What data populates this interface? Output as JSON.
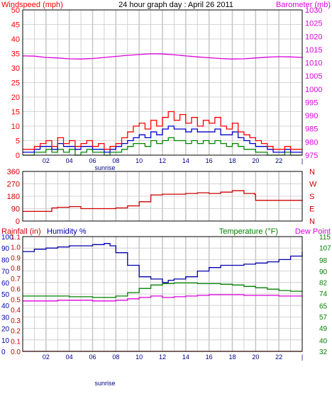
{
  "colors": {
    "wind_speed": "#ff0000",
    "wind_gust": "#0000cc",
    "wind_low": "#008800",
    "barometer": "#dd00dd",
    "direction": "#cc0000",
    "humidity": "#0000aa",
    "temperature": "#008000",
    "dew_point": "#dd00dd",
    "rainfall": "#cc0000",
    "grid": "#c8c8c8",
    "frame": "#000000"
  },
  "chart_data": [
    {
      "id": "wind-baro",
      "type": "line",
      "title": "24 hour graph day : April 26 2011",
      "left_axis_label": "Windspeed (mph)",
      "right_axis_label": "Barometer (mb)",
      "x_ticks": [
        "02",
        "04",
        "06",
        "08",
        "10",
        "12",
        "14",
        "16",
        "18",
        "20",
        "22",
        "|"
      ],
      "x_annotation": "sunrise",
      "y_left_ticks": [
        "0",
        "5",
        "10",
        "15",
        "20",
        "25",
        "30",
        "35",
        "40",
        "45",
        "50"
      ],
      "y_left_range": [
        0,
        50
      ],
      "y_right_ticks": [
        "975",
        "980",
        "985",
        "990",
        "995",
        "1000",
        "1005",
        "1010",
        "1015",
        "1020",
        "1025",
        "1030"
      ],
      "y_right_range": [
        975,
        1030
      ],
      "x_range": [
        0,
        24
      ],
      "series": [
        {
          "key": "wind_speed",
          "axis": "left",
          "x": [
            0,
            0.5,
            1,
            1.5,
            2,
            2.5,
            3,
            3.5,
            4,
            4.5,
            5,
            5.5,
            6,
            6.5,
            7,
            7.5,
            8,
            8.5,
            9,
            9.5,
            10,
            10.5,
            11,
            11.5,
            12,
            12.5,
            13,
            13.5,
            14,
            14.5,
            15,
            15.5,
            16,
            16.5,
            17,
            17.5,
            18,
            18.5,
            19,
            19.5,
            20,
            20.5,
            21,
            21.5,
            22,
            22.5,
            23,
            23.5
          ],
          "values": [
            2,
            2,
            3,
            4,
            5,
            3,
            6,
            4,
            5,
            3,
            4,
            5,
            3,
            4,
            2,
            3,
            4,
            6,
            8,
            10,
            11,
            9,
            12,
            10,
            13,
            15,
            12,
            14,
            11,
            13,
            10,
            12,
            11,
            13,
            10,
            9,
            11,
            8,
            7,
            6,
            5,
            4,
            3,
            2,
            2,
            3,
            2,
            2
          ]
        },
        {
          "key": "wind_gust",
          "axis": "left",
          "x": [
            0,
            0.5,
            1,
            1.5,
            2,
            2.5,
            3,
            3.5,
            4,
            4.5,
            5,
            5.5,
            6,
            6.5,
            7,
            7.5,
            8,
            8.5,
            9,
            9.5,
            10,
            10.5,
            11,
            11.5,
            12,
            12.5,
            13,
            13.5,
            14,
            14.5,
            15,
            15.5,
            16,
            16.5,
            17,
            17.5,
            18,
            18.5,
            19,
            19.5,
            20,
            20.5,
            21,
            21.5,
            22,
            22.5,
            23,
            23.5
          ],
          "values": [
            1,
            1,
            2,
            3,
            3,
            2,
            4,
            3,
            3,
            2,
            3,
            3,
            2,
            2,
            1,
            2,
            3,
            4,
            5,
            6,
            7,
            6,
            8,
            7,
            9,
            10,
            9,
            9,
            8,
            9,
            8,
            8,
            8,
            9,
            7,
            7,
            8,
            6,
            5,
            4,
            3,
            3,
            2,
            1,
            1,
            2,
            1,
            1
          ]
        },
        {
          "key": "wind_low",
          "axis": "left",
          "x": [
            0,
            0.5,
            1,
            1.5,
            2,
            2.5,
            3,
            3.5,
            4,
            4.5,
            5,
            5.5,
            6,
            6.5,
            7,
            7.5,
            8,
            8.5,
            9,
            9.5,
            10,
            10.5,
            11,
            11.5,
            12,
            12.5,
            13,
            13.5,
            14,
            14.5,
            15,
            15.5,
            16,
            16.5,
            17,
            17.5,
            18,
            18.5,
            19,
            19.5,
            20,
            20.5,
            21,
            21.5,
            22,
            22.5,
            23,
            23.5
          ],
          "values": [
            0,
            0,
            1,
            1,
            2,
            1,
            2,
            1,
            2,
            0,
            1,
            2,
            1,
            1,
            0,
            1,
            1,
            2,
            3,
            4,
            4,
            3,
            5,
            4,
            5,
            6,
            5,
            5,
            4,
            5,
            4,
            5,
            4,
            5,
            4,
            3,
            4,
            3,
            2,
            2,
            1,
            1,
            0,
            0,
            0,
            1,
            0,
            0
          ]
        },
        {
          "key": "barometer",
          "axis": "right",
          "x": [
            0,
            1,
            2,
            3,
            4,
            5,
            6,
            7,
            8,
            9,
            10,
            11,
            12,
            13,
            14,
            15,
            16,
            17,
            18,
            19,
            20,
            21,
            22,
            23,
            24
          ],
          "values": [
            1012.6,
            1012.5,
            1012,
            1011.8,
            1011.5,
            1011.4,
            1011.6,
            1012,
            1012.4,
            1012.8,
            1013.1,
            1013.4,
            1013.3,
            1013,
            1012.6,
            1012.2,
            1011.9,
            1011.6,
            1011.4,
            1011.5,
            1011.8,
            1012.1,
            1012.3,
            1012.2,
            1012
          ]
        }
      ]
    },
    {
      "id": "wind-direction",
      "type": "line",
      "y_left_ticks": [
        "0",
        "90",
        "180",
        "270",
        "360"
      ],
      "y_left_range": [
        0,
        360
      ],
      "y_right_ticks": [
        "N",
        "E",
        "S",
        "W",
        "N"
      ],
      "x_range": [
        0,
        24
      ],
      "series": [
        {
          "key": "direction",
          "x": [
            0,
            1,
            2,
            2.5,
            3,
            4,
            5,
            6,
            7,
            8,
            9,
            10,
            11,
            12,
            13,
            14,
            15,
            16,
            17,
            18,
            19,
            19.9,
            20,
            21,
            22,
            23,
            24
          ],
          "values": [
            70,
            70,
            70,
            95,
            100,
            105,
            90,
            90,
            90,
            95,
            110,
            140,
            190,
            195,
            195,
            200,
            205,
            200,
            210,
            220,
            200,
            195,
            150,
            150,
            150,
            150,
            150
          ]
        }
      ]
    },
    {
      "id": "temp-hum-rain",
      "type": "line",
      "rainfall_label": "Rainfall (in)",
      "humidity_label": "Humidity %",
      "temperature_label": "Temperature (°F)",
      "dew_point_label": "Dew Point",
      "x_ticks": [
        "02",
        "04",
        "06",
        "08",
        "10",
        "12",
        "14",
        "16",
        "18",
        "20",
        "22",
        "|"
      ],
      "x_annotation": "sunrise",
      "humidity_ticks": [
        "0",
        "10",
        "20",
        "30",
        "40",
        "50",
        "60",
        "70",
        "80",
        "90",
        "100"
      ],
      "rainfall_ticks": [
        "0.0",
        "0.1",
        "0.2",
        "0.3",
        "0.4",
        "0.5",
        "0.6",
        "0.7",
        "0.8",
        "0.9",
        "1.0",
        "1.1"
      ],
      "temperature_ticks": [
        "32",
        "40",
        "49",
        "57",
        "65",
        "74",
        "82",
        "90",
        "98",
        "107",
        "115"
      ],
      "humidity_range": [
        0,
        100
      ],
      "temperature_range": [
        32,
        115
      ],
      "x_range": [
        0,
        24
      ],
      "series": [
        {
          "key": "humidity",
          "axis": "humidity",
          "x": [
            0,
            1,
            2,
            3,
            4,
            5,
            6,
            7,
            7.5,
            8,
            9,
            10,
            11,
            12,
            12.5,
            13,
            14,
            15,
            16,
            17,
            18,
            19,
            20,
            21,
            22,
            23,
            24
          ],
          "values": [
            87,
            89,
            90,
            91,
            92,
            92,
            93,
            94,
            92,
            86,
            75,
            65,
            63,
            60,
            62,
            63,
            65,
            70,
            73,
            75,
            75,
            76,
            77,
            78,
            80,
            83,
            87
          ]
        },
        {
          "key": "temperature",
          "axis": "temperature",
          "x": [
            0,
            1,
            2,
            3,
            4,
            5,
            6,
            7,
            8,
            9,
            10,
            11,
            12,
            13,
            14,
            15,
            16,
            17,
            18,
            19,
            20,
            21,
            22,
            23,
            24
          ],
          "values": [
            72,
            72,
            72,
            72,
            71.5,
            71.5,
            71,
            71,
            72,
            74.5,
            77.5,
            80,
            81,
            81.5,
            81.5,
            81,
            81,
            80.5,
            80,
            79,
            78,
            77,
            76,
            75.5,
            75
          ]
        },
        {
          "key": "dew_point",
          "axis": "temperature",
          "x": [
            0,
            1,
            2,
            3,
            4,
            5,
            6,
            7,
            8,
            9,
            10,
            11,
            12,
            13,
            14,
            15,
            16,
            17,
            18,
            19,
            20,
            21,
            22,
            23,
            24
          ],
          "values": [
            68.5,
            68.5,
            68.5,
            69,
            69,
            69,
            68.5,
            68.5,
            69,
            70,
            71,
            72,
            71,
            71.5,
            72,
            72.5,
            73,
            73,
            73,
            72.5,
            72.5,
            72.5,
            72,
            72,
            72
          ]
        },
        {
          "key": "rainfall",
          "axis": "rainfall",
          "x": [
            0,
            24
          ],
          "values": [
            0,
            0
          ]
        }
      ]
    }
  ]
}
